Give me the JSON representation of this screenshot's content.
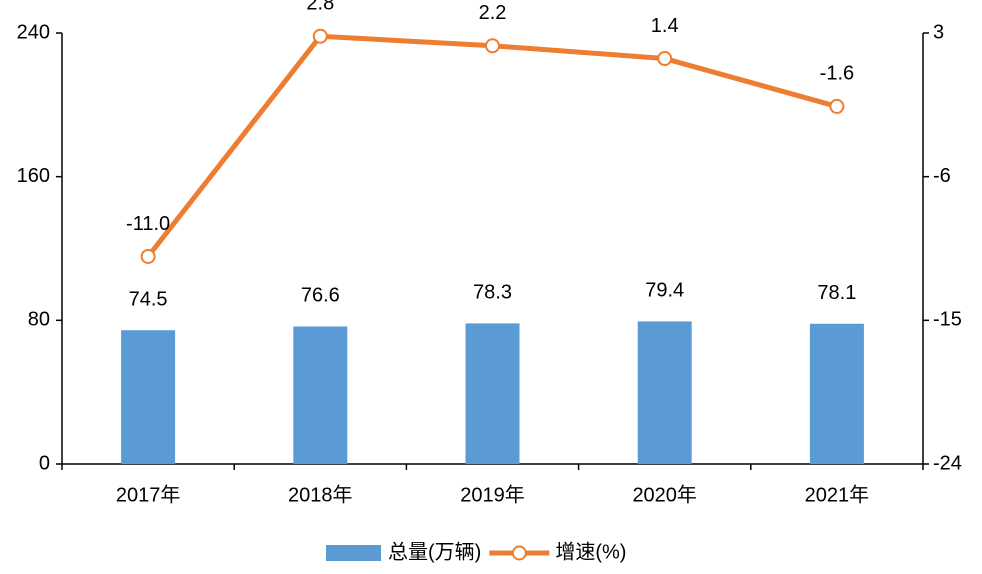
{
  "chart_data": {
    "type": "bar",
    "categories": [
      "2017年",
      "2018年",
      "2019年",
      "2020年",
      "2021年"
    ],
    "series": [
      {
        "name": "总量(万辆)",
        "type": "bar",
        "color": "#5b9bd5",
        "values": [
          74.5,
          76.6,
          78.3,
          79.4,
          78.1
        ]
      },
      {
        "name": "增速(%)",
        "type": "line",
        "axis": "y2",
        "color": "#ed7d31",
        "values": [
          -11.0,
          2.8,
          2.2,
          1.4,
          -1.6
        ],
        "value_labels": [
          "-11.0",
          "2.8",
          "2.2",
          "1.4",
          "-1.6"
        ]
      }
    ],
    "ylim": [
      0,
      240
    ],
    "yticks": [
      0,
      80,
      160,
      240
    ],
    "y2lim": [
      -24,
      3
    ],
    "y2ticks": [
      -24,
      -15,
      -6,
      3
    ],
    "legend": "bottom"
  }
}
